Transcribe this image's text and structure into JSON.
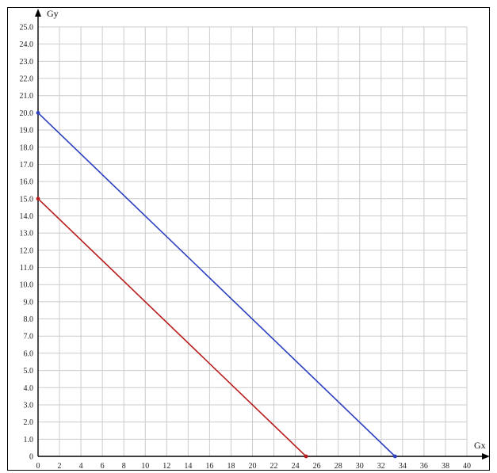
{
  "chart_data": {
    "type": "line",
    "title": "",
    "xlabel": "Gx",
    "ylabel": "Gy",
    "xlim": [
      0,
      40
    ],
    "ylim": [
      0,
      25
    ],
    "x_ticks": [
      "0",
      "2",
      "4",
      "6",
      "8",
      "10",
      "12",
      "14",
      "16",
      "18",
      "20",
      "22",
      "24",
      "26",
      "28",
      "30",
      "32",
      "34",
      "36",
      "38",
      "40"
    ],
    "y_ticks": [
      "0",
      "1.0",
      "2.0",
      "3.0",
      "4.0",
      "5.0",
      "6.0",
      "7.0",
      "8.0",
      "9.0",
      "10.0",
      "11.0",
      "12.0",
      "13.0",
      "14.0",
      "15.0",
      "16.0",
      "17.0",
      "18.0",
      "19.0",
      "20.0",
      "21.0",
      "22.0",
      "23.0",
      "24.0",
      "25.0"
    ],
    "grid": true,
    "legend": "none",
    "series": [
      {
        "color": "#2b3fbf",
        "points": [
          {
            "x": 0,
            "y": 20
          },
          {
            "x": 33.3,
            "y": 0
          }
        ]
      },
      {
        "color": "#b81c1c",
        "points": [
          {
            "x": 0,
            "y": 15
          },
          {
            "x": 25,
            "y": 0
          }
        ]
      }
    ]
  }
}
